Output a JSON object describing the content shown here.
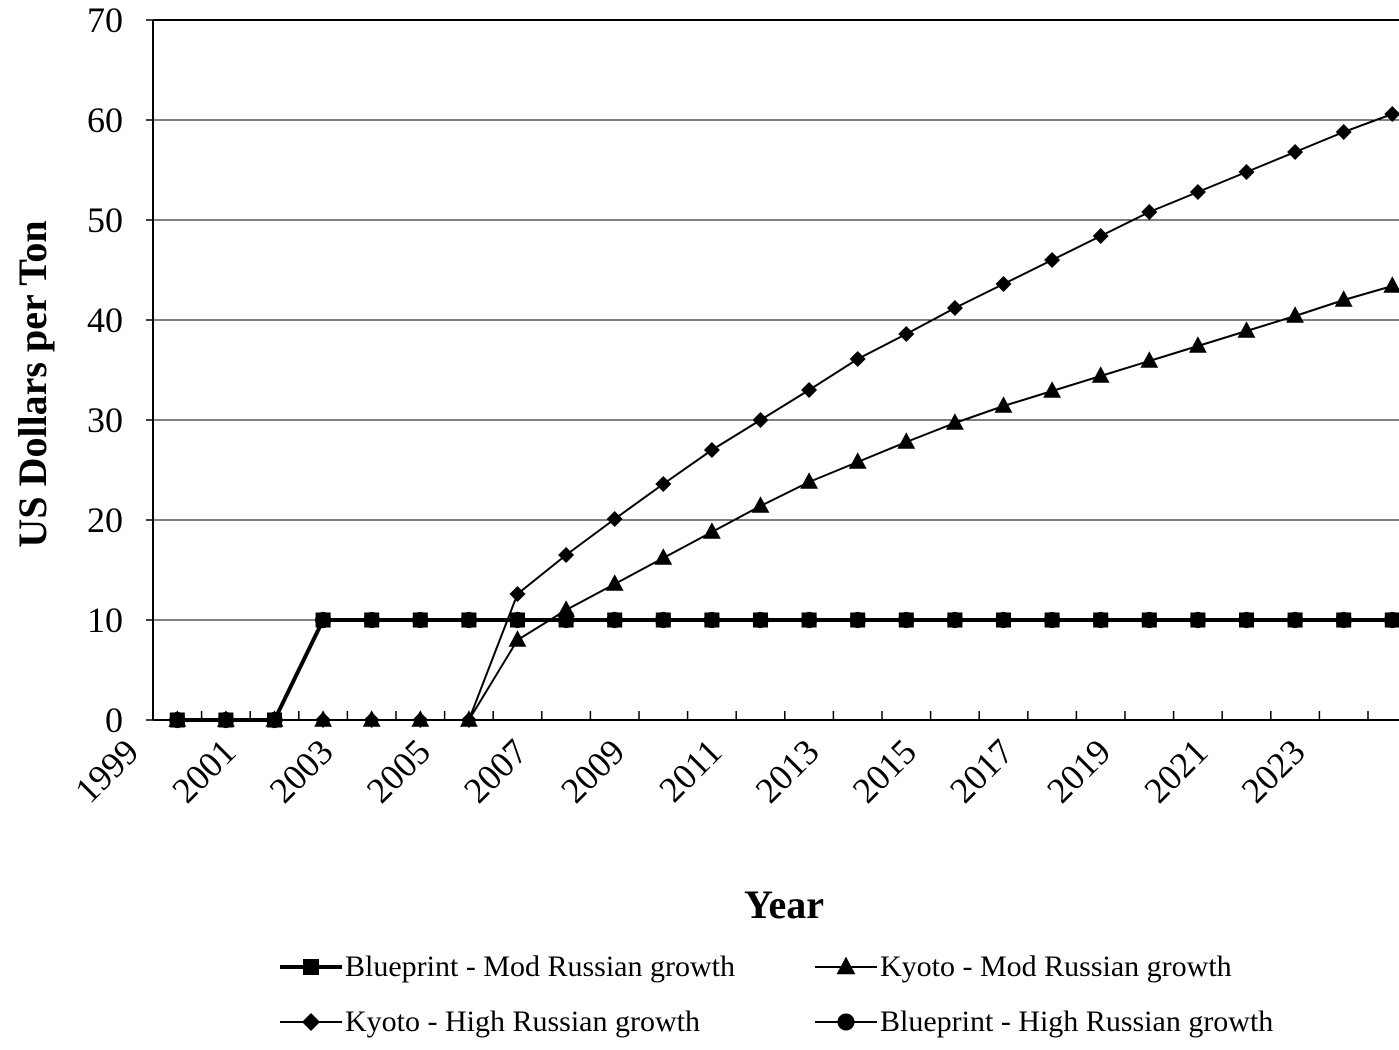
{
  "chart_data": {
    "type": "line",
    "title": "",
    "xlabel": "Year",
    "ylabel": "US Dollars per Ton",
    "x": [
      2000,
      2001,
      2002,
      2003,
      2004,
      2005,
      2006,
      2007,
      2008,
      2009,
      2010,
      2011,
      2012,
      2013,
      2014,
      2015,
      2016,
      2017,
      2018,
      2019,
      2020,
      2021,
      2022,
      2023,
      2024,
      2025
    ],
    "x_tick_labels": [
      "1999",
      "2001",
      "2003",
      "2005",
      "2007",
      "2009",
      "2011",
      "2013",
      "2015",
      "2017",
      "2019",
      "2021",
      "2023"
    ],
    "ylim": [
      0,
      70
    ],
    "y_ticks": [
      0,
      10,
      20,
      30,
      40,
      50,
      60,
      70
    ],
    "grid": "horizontal",
    "legend_position": "bottom",
    "series": [
      {
        "name": "Blueprint - Mod Russian growth",
        "marker": "square",
        "stroke_width": 4,
        "values": [
          0,
          0,
          0,
          10,
          10,
          10,
          10,
          10,
          10,
          10,
          10,
          10,
          10,
          10,
          10,
          10,
          10,
          10,
          10,
          10,
          10,
          10,
          10,
          10,
          10,
          10
        ]
      },
      {
        "name": "Kyoto - Mod Russian growth",
        "marker": "triangle",
        "stroke_width": 2,
        "values": [
          0,
          0,
          0,
          0,
          0,
          0,
          0,
          8,
          11,
          13.6,
          16.2,
          18.8,
          21.4,
          23.8,
          25.8,
          27.8,
          29.7,
          31.4,
          32.9,
          34.4,
          35.9,
          37.4,
          38.9,
          40.4,
          42,
          43.4
        ]
      },
      {
        "name": "Kyoto - High Russian growth",
        "marker": "diamond",
        "stroke_width": 2,
        "values": [
          0,
          0,
          0,
          0,
          0,
          0,
          0,
          12.6,
          16.5,
          20.1,
          23.6,
          27,
          30,
          33,
          36.1,
          38.6,
          41.2,
          43.6,
          46,
          48.4,
          50.8,
          52.8,
          54.8,
          56.8,
          58.8,
          60.6
        ]
      },
      {
        "name": "Blueprint - High Russian growth",
        "marker": "circle",
        "stroke_width": 2,
        "values": [
          0,
          0,
          0,
          10,
          10,
          10,
          10,
          10,
          10,
          10,
          10,
          10,
          10,
          10,
          10,
          10,
          10,
          10,
          10,
          10,
          10,
          10,
          10,
          10,
          10,
          10
        ]
      }
    ]
  }
}
